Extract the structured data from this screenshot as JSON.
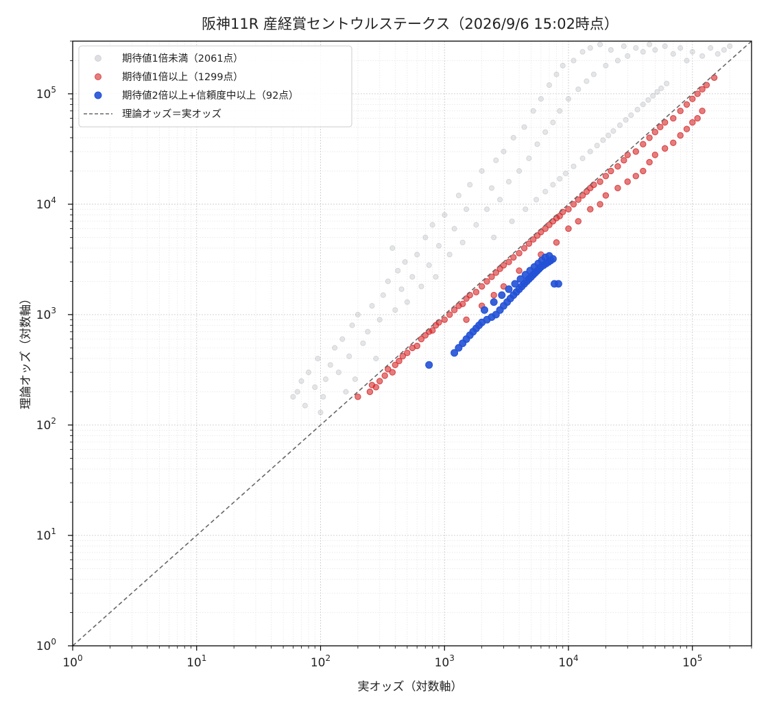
{
  "chart_data": {
    "type": "scatter",
    "title": "阪神11R 産経賞セントウルステークス（2026/9/6 15:02時点）",
    "xlabel": "実オッズ（対数軸）",
    "ylabel": "理論オッズ（対数軸）",
    "x_scale": "log",
    "y_scale": "log",
    "xlim": [
      1,
      300000
    ],
    "ylim": [
      1,
      300000
    ],
    "grid": true,
    "legend_position": "top-left",
    "x_ticks": [
      1,
      10,
      100,
      1000,
      10000,
      100000
    ],
    "y_ticks": [
      1,
      10,
      100,
      1000,
      10000,
      100000
    ],
    "series": [
      {
        "name": "期待値1倍未満（2061点）",
        "color": "#a0a4ad",
        "count": 2061,
        "points": [
          [
            60,
            180
          ],
          [
            65,
            200
          ],
          [
            70,
            250
          ],
          [
            75,
            150
          ],
          [
            80,
            300
          ],
          [
            90,
            220
          ],
          [
            95,
            400
          ],
          [
            100,
            130
          ],
          [
            105,
            180
          ],
          [
            110,
            260
          ],
          [
            120,
            350
          ],
          [
            130,
            500
          ],
          [
            140,
            300
          ],
          [
            150,
            600
          ],
          [
            160,
            200
          ],
          [
            170,
            420
          ],
          [
            180,
            800
          ],
          [
            190,
            260
          ],
          [
            200,
            1000
          ],
          [
            220,
            550
          ],
          [
            240,
            700
          ],
          [
            260,
            1200
          ],
          [
            280,
            400
          ],
          [
            300,
            900
          ],
          [
            320,
            1500
          ],
          [
            350,
            2000
          ],
          [
            380,
            4000
          ],
          [
            400,
            1100
          ],
          [
            420,
            2500
          ],
          [
            450,
            1700
          ],
          [
            480,
            3000
          ],
          [
            500,
            1300
          ],
          [
            550,
            2200
          ],
          [
            600,
            3500
          ],
          [
            650,
            1800
          ],
          [
            700,
            5000
          ],
          [
            750,
            2800
          ],
          [
            800,
            6500
          ],
          [
            850,
            2200
          ],
          [
            900,
            4200
          ],
          [
            1000,
            8000
          ],
          [
            1100,
            3500
          ],
          [
            1200,
            6000
          ],
          [
            1300,
            12000
          ],
          [
            1400,
            4500
          ],
          [
            1500,
            9000
          ],
          [
            1600,
            15000
          ],
          [
            1800,
            6500
          ],
          [
            2000,
            20000
          ],
          [
            2200,
            9000
          ],
          [
            2400,
            14000
          ],
          [
            2600,
            25000
          ],
          [
            2800,
            11000
          ],
          [
            3000,
            30000
          ],
          [
            3300,
            16000
          ],
          [
            3600,
            40000
          ],
          [
            4000,
            20000
          ],
          [
            4400,
            50000
          ],
          [
            4800,
            26000
          ],
          [
            5200,
            70000
          ],
          [
            5600,
            35000
          ],
          [
            6000,
            90000
          ],
          [
            6500,
            45000
          ],
          [
            7000,
            120000
          ],
          [
            7500,
            55000
          ],
          [
            8000,
            150000
          ],
          [
            8500,
            70000
          ],
          [
            9000,
            180000
          ],
          [
            10000,
            90000
          ],
          [
            11000,
            200000
          ],
          [
            12000,
            110000
          ],
          [
            13000,
            240000
          ],
          [
            14000,
            130000
          ],
          [
            15000,
            260000
          ],
          [
            16000,
            150000
          ],
          [
            18000,
            280000
          ],
          [
            20000,
            180000
          ],
          [
            22000,
            250000
          ],
          [
            25000,
            200000
          ],
          [
            28000,
            270000
          ],
          [
            30000,
            220000
          ],
          [
            35000,
            260000
          ],
          [
            40000,
            240000
          ],
          [
            45000,
            280000
          ],
          [
            50000,
            250000
          ],
          [
            60000,
            270000
          ],
          [
            70000,
            230000
          ],
          [
            80000,
            260000
          ],
          [
            90000,
            200000
          ],
          [
            100000,
            240000
          ],
          [
            120000,
            220000
          ],
          [
            140000,
            260000
          ],
          [
            160000,
            230000
          ],
          [
            180000,
            250000
          ],
          [
            200000,
            270000
          ],
          [
            2500,
            5000
          ],
          [
            3500,
            7000
          ],
          [
            4500,
            9000
          ],
          [
            5500,
            11000
          ],
          [
            6500,
            13000
          ],
          [
            7500,
            15000
          ],
          [
            8500,
            17000
          ],
          [
            9500,
            19000
          ],
          [
            11000,
            22000
          ],
          [
            13000,
            26000
          ],
          [
            15000,
            30000
          ],
          [
            17000,
            34000
          ],
          [
            19000,
            38000
          ],
          [
            21000,
            42000
          ],
          [
            23000,
            46000
          ],
          [
            26000,
            52000
          ],
          [
            29000,
            58000
          ],
          [
            32000,
            64000
          ],
          [
            36000,
            72000
          ],
          [
            40000,
            80000
          ],
          [
            44000,
            88000
          ],
          [
            48000,
            96000
          ],
          [
            52000,
            104000
          ],
          [
            56000,
            112000
          ],
          [
            62000,
            124000
          ]
        ]
      },
      {
        "name": "期待値1倍以上（1299点）",
        "color": "#d62728",
        "count": 1299,
        "points": [
          [
            200,
            180
          ],
          [
            250,
            200
          ],
          [
            260,
            230
          ],
          [
            280,
            220
          ],
          [
            300,
            250
          ],
          [
            330,
            280
          ],
          [
            350,
            320
          ],
          [
            380,
            300
          ],
          [
            400,
            350
          ],
          [
            430,
            380
          ],
          [
            460,
            420
          ],
          [
            500,
            450
          ],
          [
            550,
            500
          ],
          [
            600,
            520
          ],
          [
            650,
            600
          ],
          [
            700,
            650
          ],
          [
            750,
            700
          ],
          [
            800,
            720
          ],
          [
            850,
            800
          ],
          [
            900,
            850
          ],
          [
            1000,
            900
          ],
          [
            1100,
            1000
          ],
          [
            1200,
            1100
          ],
          [
            1300,
            1200
          ],
          [
            1400,
            1250
          ],
          [
            1500,
            1400
          ],
          [
            1600,
            1500
          ],
          [
            1800,
            1600
          ],
          [
            2000,
            1800
          ],
          [
            2200,
            2000
          ],
          [
            2400,
            2200
          ],
          [
            2600,
            2400
          ],
          [
            2800,
            2600
          ],
          [
            3000,
            2800
          ],
          [
            3300,
            3000
          ],
          [
            3600,
            3300
          ],
          [
            4000,
            3600
          ],
          [
            4400,
            4000
          ],
          [
            4800,
            4400
          ],
          [
            5200,
            4800
          ],
          [
            5600,
            5200
          ],
          [
            6000,
            5600
          ],
          [
            6500,
            6000
          ],
          [
            7000,
            6500
          ],
          [
            7500,
            7000
          ],
          [
            8000,
            7500
          ],
          [
            8500,
            7800
          ],
          [
            9000,
            8500
          ],
          [
            10000,
            9000
          ],
          [
            11000,
            10000
          ],
          [
            12000,
            11000
          ],
          [
            13000,
            12000
          ],
          [
            14000,
            13000
          ],
          [
            15000,
            14000
          ],
          [
            16000,
            15000
          ],
          [
            18000,
            16000
          ],
          [
            20000,
            18000
          ],
          [
            22000,
            20000
          ],
          [
            25000,
            22000
          ],
          [
            28000,
            25000
          ],
          [
            30000,
            28000
          ],
          [
            35000,
            30000
          ],
          [
            40000,
            35000
          ],
          [
            45000,
            40000
          ],
          [
            50000,
            45000
          ],
          [
            55000,
            50000
          ],
          [
            60000,
            55000
          ],
          [
            70000,
            60000
          ],
          [
            80000,
            70000
          ],
          [
            90000,
            80000
          ],
          [
            100000,
            90000
          ],
          [
            110000,
            100000
          ],
          [
            120000,
            110000
          ],
          [
            130000,
            120000
          ],
          [
            150000,
            140000
          ],
          [
            4000,
            2500
          ],
          [
            6000,
            3500
          ],
          [
            8000,
            4500
          ],
          [
            10000,
            6000
          ],
          [
            12000,
            7000
          ],
          [
            15000,
            9000
          ],
          [
            18000,
            10000
          ],
          [
            20000,
            12000
          ],
          [
            25000,
            14000
          ],
          [
            30000,
            16000
          ],
          [
            35000,
            18000
          ],
          [
            40000,
            20000
          ],
          [
            45000,
            24000
          ],
          [
            50000,
            28000
          ],
          [
            60000,
            32000
          ],
          [
            70000,
            36000
          ],
          [
            80000,
            42000
          ],
          [
            90000,
            48000
          ],
          [
            100000,
            55000
          ],
          [
            110000,
            60000
          ],
          [
            120000,
            70000
          ],
          [
            3000,
            1800
          ],
          [
            2500,
            1500
          ],
          [
            2000,
            1200
          ],
          [
            1500,
            900
          ]
        ]
      },
      {
        "name": "期待値2倍以上+信頼度中以上（92点）",
        "color": "#2251d6",
        "count": 92,
        "points": [
          [
            750,
            350
          ],
          [
            1200,
            450
          ],
          [
            1300,
            500
          ],
          [
            1400,
            550
          ],
          [
            1500,
            600
          ],
          [
            1600,
            650
          ],
          [
            1700,
            700
          ],
          [
            1800,
            750
          ],
          [
            1900,
            800
          ],
          [
            2000,
            850
          ],
          [
            2200,
            900
          ],
          [
            2400,
            950
          ],
          [
            2600,
            1000
          ],
          [
            2800,
            1100
          ],
          [
            3000,
            1200
          ],
          [
            3200,
            1300
          ],
          [
            3400,
            1400
          ],
          [
            3600,
            1500
          ],
          [
            3800,
            1600
          ],
          [
            4000,
            1700
          ],
          [
            4200,
            1800
          ],
          [
            4400,
            1900
          ],
          [
            4600,
            2000
          ],
          [
            4800,
            2100
          ],
          [
            5000,
            2200
          ],
          [
            5200,
            2300
          ],
          [
            5400,
            2400
          ],
          [
            5600,
            2500
          ],
          [
            5800,
            2600
          ],
          [
            6000,
            2700
          ],
          [
            6300,
            2800
          ],
          [
            6600,
            2900
          ],
          [
            6900,
            3000
          ],
          [
            7200,
            3100
          ],
          [
            7500,
            3200
          ],
          [
            2100,
            1100
          ],
          [
            2500,
            1300
          ],
          [
            2900,
            1500
          ],
          [
            3300,
            1700
          ],
          [
            3700,
            1900
          ],
          [
            4100,
            2100
          ],
          [
            4500,
            2300
          ],
          [
            4900,
            2500
          ],
          [
            5300,
            2700
          ],
          [
            5700,
            2900
          ],
          [
            6100,
            3100
          ],
          [
            6500,
            3300
          ],
          [
            7000,
            3400
          ],
          [
            7700,
            1900
          ],
          [
            8300,
            1900
          ]
        ]
      }
    ],
    "reference_line": {
      "name": "理論オッズ＝実オッズ",
      "color": "#666666",
      "style": "dashed"
    }
  }
}
